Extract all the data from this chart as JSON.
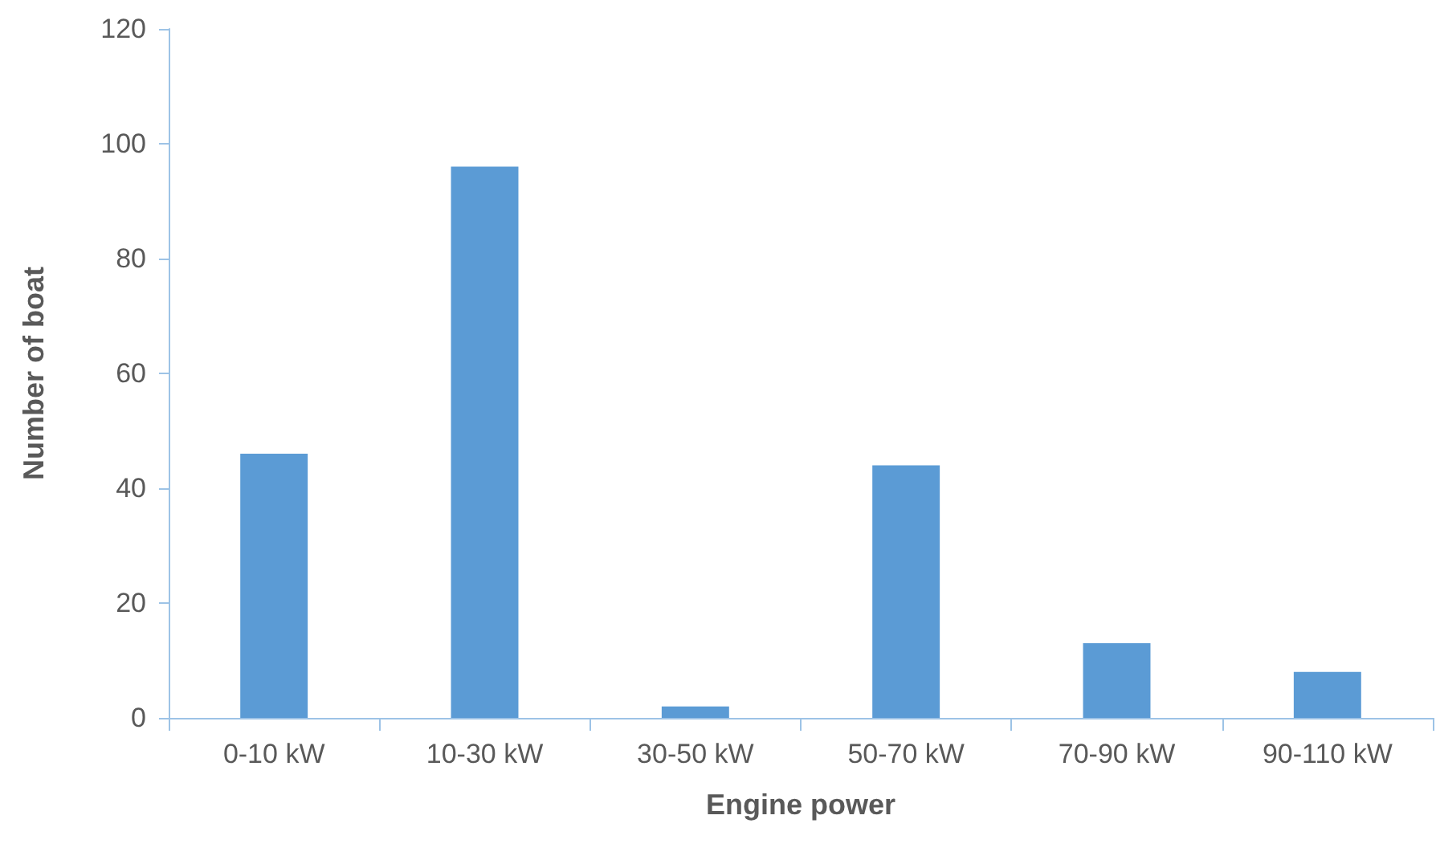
{
  "chart_data": {
    "type": "bar",
    "xlabel": "Engine power",
    "ylabel": "Number of boat",
    "categories": [
      "0-10 kW",
      "10-30 kW",
      "30-50 kW",
      "50-70 kW",
      "70-90 kW",
      "90-110 kW"
    ],
    "values": [
      46,
      96,
      2,
      44,
      13,
      8
    ],
    "color": "#5b9bd5",
    "ylim": [
      0,
      120
    ],
    "yticks": [
      0,
      20,
      40,
      60,
      80,
      100,
      120
    ],
    "grid": false
  }
}
